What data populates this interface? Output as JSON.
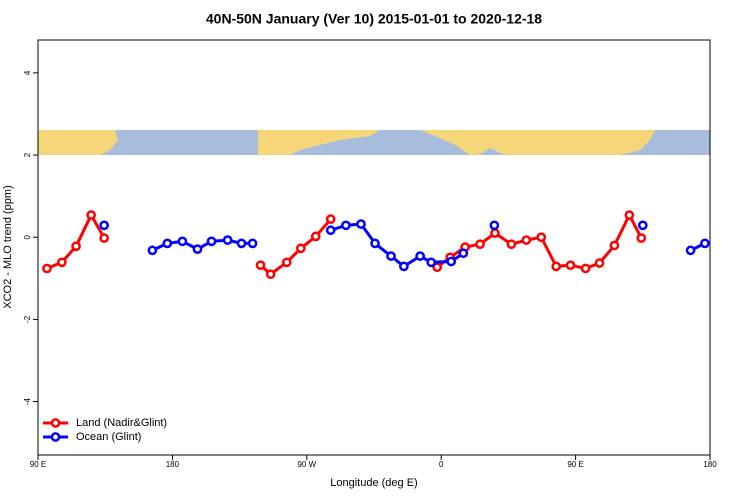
{
  "chart_data": {
    "type": "line",
    "title": "40N-50N January (Ver 10)   2015-01-01 to 2020-12-18",
    "x_label": "Longitude (deg E)",
    "y_label": "XCO2 - MLO trend (ppm)",
    "xlim": [
      90,
      540
    ],
    "ylim": [
      -5.3,
      4.8
    ],
    "xticks": [
      {
        "value": 90,
        "label": "90 E"
      },
      180,
      {
        "value": 270,
        "label": "90 W"
      },
      {
        "value": 360,
        "label": "0"
      },
      {
        "value": 450,
        "label": "90 E"
      },
      {
        "value": 540,
        "label": "180"
      }
    ],
    "yticks": [
      -4,
      -2,
      0,
      2,
      4
    ],
    "legend": "bottom-left",
    "series": [
      {
        "name": "Land (Nadir&Glint)",
        "color": "#ff0000",
        "x": [
          96,
          106,
          115.5,
          125.6,
          134.3,
          null,
          239,
          245.8,
          256.6,
          266,
          276,
          286,
          null,
          357.3,
          366,
          376,
          386,
          396,
          407,
          417,
          427,
          437,
          446.6,
          456.7,
          466,
          476,
          486,
          494
        ],
        "values": [
          -0.76,
          -0.61,
          -0.22,
          0.54,
          -0.02,
          null,
          -0.68,
          -0.9,
          -0.61,
          -0.27,
          0.02,
          0.44,
          null,
          -0.73,
          -0.49,
          -0.24,
          -0.17,
          0.1,
          -0.17,
          -0.07,
          0,
          -0.71,
          -0.68,
          -0.76,
          -0.63,
          -0.2,
          0.54,
          -0.02
        ]
      },
      {
        "name": "Ocean (Glint)",
        "color": "#0000ff",
        "x": [
          134.3,
          null,
          166.6,
          176.6,
          186.7,
          196.8,
          206.2,
          217,
          226.3,
          233.7,
          null,
          286,
          296.2,
          306.3,
          315.7,
          326.4,
          335,
          345.9,
          353.3,
          366.7,
          374.8,
          null,
          395.6,
          null,
          495,
          null,
          527,
          536.6
        ],
        "values": [
          0.29,
          null,
          -0.32,
          -0.15,
          -0.1,
          -0.29,
          -0.1,
          -0.07,
          -0.15,
          -0.15,
          null,
          0.17,
          0.29,
          0.32,
          -0.15,
          -0.46,
          -0.71,
          -0.46,
          -0.61,
          -0.59,
          -0.39,
          null,
          0.29,
          null,
          0.29,
          null,
          -0.32,
          -0.15
        ]
      }
    ]
  }
}
